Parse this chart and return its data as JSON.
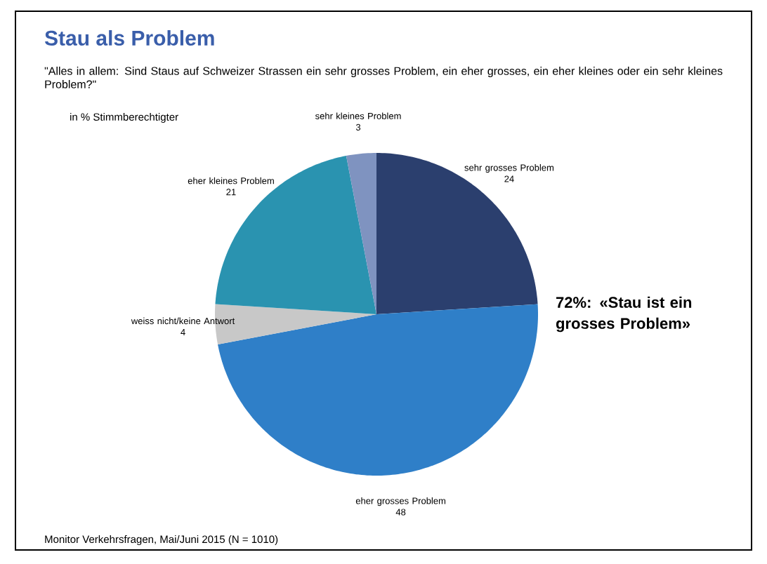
{
  "chart_data": {
    "type": "pie",
    "title": "Stau als Problem",
    "subtitle": "\"Alles in allem: Sind Staus auf Schweizer Strassen ein sehr grosses Problem, ein eher grosses, ein eher kleines oder ein sehr kleines Problem?\"",
    "categories": [
      "sehr grosses Problem",
      "eher grosses Problem",
      "weiss nicht/keine Antwort",
      "eher kleines Problem",
      "sehr kleines Problem"
    ],
    "values": [
      24,
      48,
      4,
      21,
      3
    ],
    "colors": [
      "#2b3f6e",
      "#2f7fc8",
      "#c8c8c8",
      "#2a93b0",
      "#7f93c0"
    ],
    "data_labels": true,
    "annotations": [
      "in % Stimmberechtigter",
      "72%: «Stau ist ein grosses Problem»",
      "Monitor Verkehrsfragen, Mai/Juni 2015 (N = 1010)"
    ]
  }
}
